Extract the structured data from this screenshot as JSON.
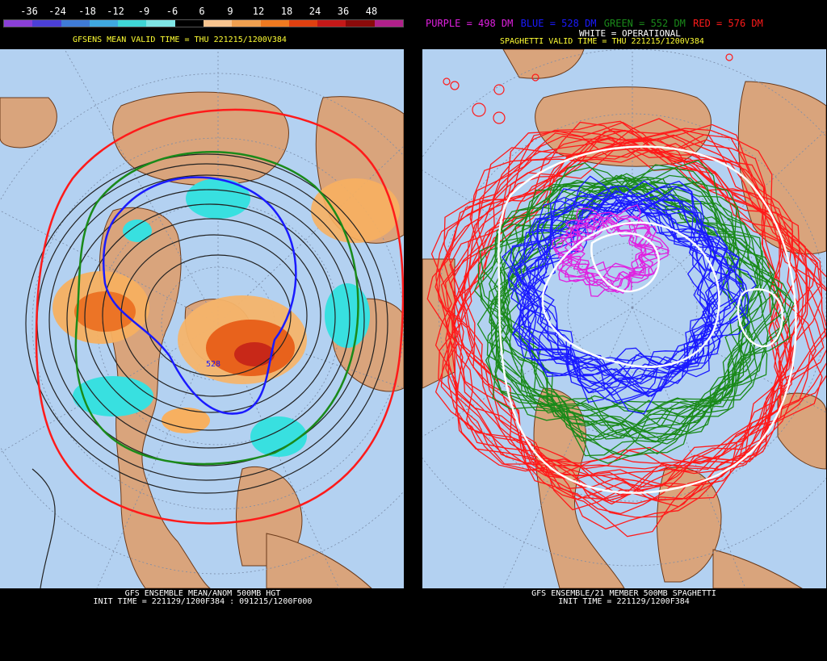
{
  "left": {
    "colorbar_ticks": [
      "-36",
      "-24",
      "-18",
      "-12",
      "-9",
      "-6",
      "6",
      "9",
      "12",
      "18",
      "24",
      "36",
      "48"
    ],
    "colorbar_colors": [
      "#8a3fd6",
      "#4b3fd6",
      "#3f7bd6",
      "#3fa8e0",
      "#3fd6d6",
      "#7fe6e6",
      "#000000",
      "#f7c48f",
      "#f0a050",
      "#f07a20",
      "#e04010",
      "#c41818",
      "#8a0a0a",
      "#b0208a"
    ],
    "title": "GFSENS MEAN VALID TIME = THU 221215/1200V384",
    "contour_label": "528",
    "footer_line1": "GFS ENSEMBLE MEAN/ANOM 500MB HGT",
    "footer_line2": "INIT TIME = 221129/1200F384 : 091215/1200F000"
  },
  "right": {
    "legend": {
      "purple": "PURPLE = 498 DM",
      "blue": "BLUE = 528 DM",
      "green": "GREEN = 552 DM",
      "red": "RED = 576 DM"
    },
    "operational": "WHITE = OPERATIONAL",
    "title": "SPAGHETTI VALID TIME = THU 221215/1200V384",
    "footer_line1": "GFS ENSEMBLE/21 MEMBER 500MB SPAGHETTI",
    "footer_line2": "INIT TIME = 221129/1200F384"
  },
  "colors": {
    "ocean": "#b3d1f1",
    "land": "#d9a47c",
    "purple": "#e020e0",
    "blue": "#1a1aff",
    "green": "#1a8a1a",
    "red": "#ff1a1a",
    "white": "#ffffff",
    "yellow": "#ffff33"
  }
}
